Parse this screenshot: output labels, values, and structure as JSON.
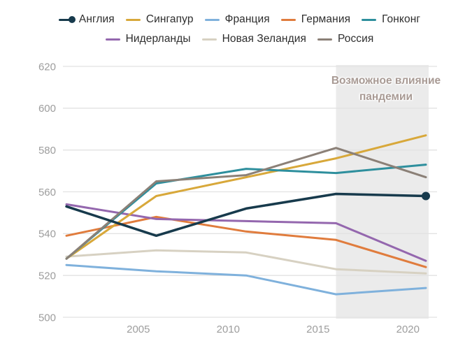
{
  "chart_data": {
    "type": "line",
    "x": [
      2001,
      2006,
      2011,
      2016,
      2021
    ],
    "series": [
      {
        "name": "Англия",
        "color": "#173a4c",
        "values": [
          553,
          539,
          552,
          559,
          558
        ],
        "end_marker": true
      },
      {
        "name": "Сингапур",
        "color": "#d8a83a",
        "values": [
          528,
          558,
          567,
          576,
          587
        ],
        "end_marker": false
      },
      {
        "name": "Франция",
        "color": "#7fb1dc",
        "values": [
          525,
          522,
          520,
          511,
          514
        ],
        "end_marker": false
      },
      {
        "name": "Германия",
        "color": "#e07c3d",
        "values": [
          539,
          548,
          541,
          537,
          524
        ],
        "end_marker": false
      },
      {
        "name": "Гонконг",
        "color": "#2e8f9d",
        "values": [
          528,
          564,
          571,
          569,
          573
        ],
        "end_marker": false
      },
      {
        "name": "Нидерланды",
        "color": "#9467ae",
        "values": [
          554,
          547,
          546,
          545,
          527
        ],
        "end_marker": false
      },
      {
        "name": "Новая Зеландия",
        "color": "#d7d1c2",
        "values": [
          529,
          532,
          531,
          523,
          521
        ],
        "end_marker": false
      },
      {
        "name": "Россия",
        "color": "#8b8077",
        "values": [
          528,
          565,
          568,
          581,
          567
        ],
        "end_marker": false
      }
    ],
    "y_ticks": [
      500,
      520,
      540,
      560,
      580,
      600,
      620
    ],
    "x_ticks": [
      2005,
      2010,
      2015,
      2020
    ],
    "ylim": [
      500,
      620
    ],
    "grid": true,
    "legend_position": "top",
    "legend_rows": [
      5,
      3
    ],
    "annotation": {
      "lines": [
        "Возможное влияние",
        "пандемии"
      ],
      "region_start_year": 2016,
      "region_color": "#ebebeb",
      "text_color": "#a89a94"
    },
    "colors": {
      "gridline": "#e2e2e2",
      "tick_label": "#9d9d9d",
      "legend_text": "#2e2e2e"
    }
  }
}
